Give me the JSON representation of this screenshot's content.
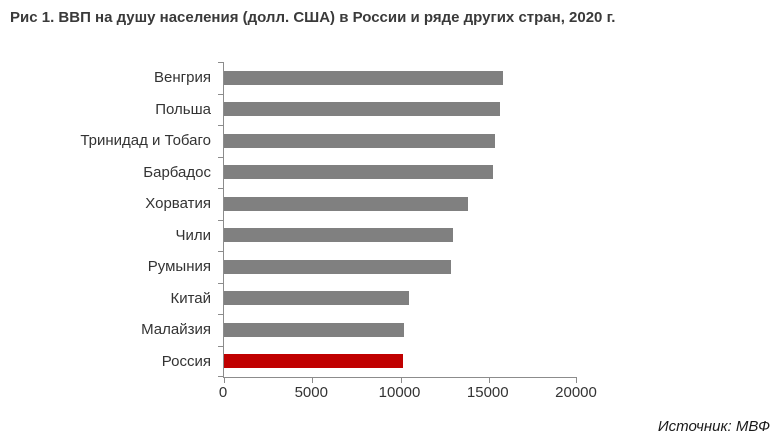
{
  "title": "Рис 1. ВВП на душу населения (долл. США) в России и ряде других стран, 2020 г.",
  "source": "Источник: МВФ",
  "colors": {
    "bar_default": "#808080",
    "bar_highlight": "#C00000",
    "axis": "#8C8C8C",
    "text": "#333333",
    "title_text": "#3A3A3A"
  },
  "chart_data": {
    "type": "bar",
    "orientation": "horizontal",
    "title": "Рис 1. ВВП на душу населения (долл. США) в России и ряде других стран, 2020 г.",
    "categories": [
      "Венгрия",
      "Польша",
      "Тринидад и Тобаго",
      "Барбадос",
      "Хорватия",
      "Чили",
      "Румыния",
      "Китай",
      "Малайзия",
      "Россия"
    ],
    "values": [
      15800,
      15650,
      15350,
      15250,
      13850,
      12950,
      12850,
      10500,
      10200,
      10150
    ],
    "highlight_category": "Россия",
    "highlight_index": 9,
    "xlim": [
      0,
      20000
    ],
    "x_ticks": [
      0,
      5000,
      10000,
      15000,
      20000
    ],
    "xlabel": "",
    "ylabel": "",
    "grid": false,
    "legend": "none",
    "source_note": "Источник: МВФ"
  }
}
